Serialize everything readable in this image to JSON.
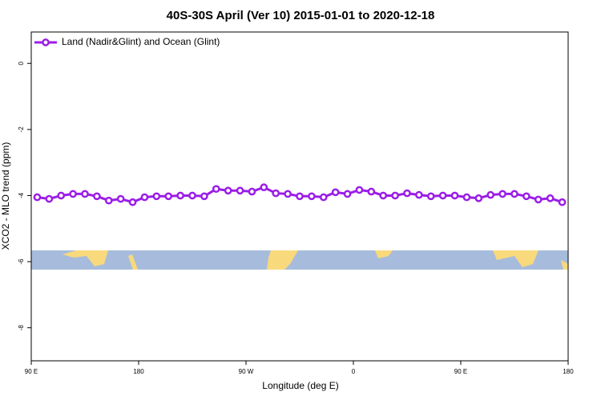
{
  "chart_data": {
    "type": "line",
    "title": "40S-30S April (Ver 10)   2015-01-01 to 2020-12-18",
    "x_label": "Longitude (deg E)",
    "y_label": "XCO2 - MLO trend (ppm)",
    "x": [
      95,
      105,
      115,
      125,
      135,
      145,
      155,
      165,
      175,
      185,
      195,
      205,
      215,
      225,
      235,
      245,
      255,
      265,
      275,
      285,
      295,
      305,
      315,
      325,
      335,
      345,
      355,
      365,
      375,
      385,
      395,
      405,
      415,
      425,
      435,
      445,
      455,
      465,
      475,
      485,
      495,
      505,
      515,
      525,
      535
    ],
    "series": [
      {
        "name": "Land (Nadir&Glint) and Ocean (Glint)",
        "color": "#9b1de8",
        "values": [
          -4.05,
          -4.1,
          -4.0,
          -3.95,
          -3.95,
          -4.02,
          -4.15,
          -4.1,
          -4.2,
          -4.05,
          -4.02,
          -4.02,
          -4.0,
          -4.0,
          -4.02,
          -3.8,
          -3.85,
          -3.85,
          -3.88,
          -3.75,
          -3.93,
          -3.95,
          -4.02,
          -4.02,
          -4.05,
          -3.9,
          -3.95,
          -3.83,
          -3.88,
          -4.0,
          -4.0,
          -3.93,
          -3.98,
          -4.02,
          -4.0,
          -4.0,
          -4.05,
          -4.08,
          -3.98,
          -3.95,
          -3.95,
          -4.02,
          -4.12,
          -4.08,
          -4.2
        ]
      }
    ],
    "xlim": [
      90,
      540
    ],
    "xticks": [
      {
        "value": 90,
        "label": "90 E"
      },
      {
        "value": 180,
        "label": "180"
      },
      {
        "value": 270,
        "label": "90 W"
      },
      {
        "value": 360,
        "label": "0"
      },
      {
        "value": 450,
        "label": "90 E"
      },
      {
        "value": 540,
        "label": "180"
      }
    ],
    "ylim": [
      -9,
      0.95
    ],
    "yticks": [
      0,
      -2,
      -4,
      -6,
      -8
    ],
    "legend_position": "top-left"
  }
}
